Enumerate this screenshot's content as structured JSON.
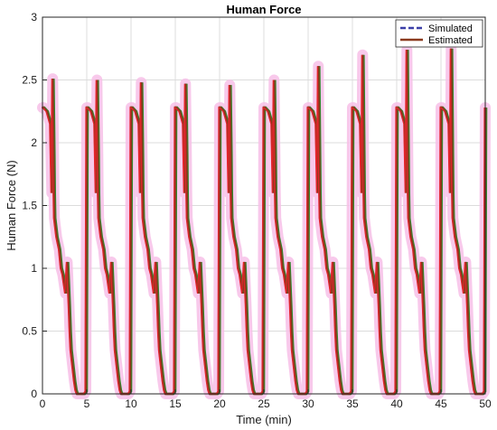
{
  "chart_data": {
    "type": "line",
    "title": "Human Force",
    "xlabel": "Time (min)",
    "ylabel": "Human Force (N)",
    "xlim": [
      0,
      50
    ],
    "ylim": [
      0,
      3
    ],
    "x_ticks": [
      0,
      5,
      10,
      15,
      20,
      25,
      30,
      35,
      40,
      45,
      50
    ],
    "y_ticks": [
      0,
      0.5,
      1,
      1.5,
      2,
      2.5,
      3
    ],
    "grid": true,
    "legend_position": "top-right",
    "cycle_period": 5,
    "cycle_starts": [
      0,
      5,
      10,
      15,
      20,
      25,
      30,
      35,
      40,
      45
    ],
    "cycle_peaks": [
      2.51,
      2.5,
      2.48,
      2.47,
      2.46,
      2.5,
      2.61,
      2.7,
      2.74,
      2.75
    ],
    "cycle_profile": {
      "t": [
        0,
        0.1,
        0.5,
        0.9,
        1.05,
        1.15,
        1.25,
        1.3,
        1.35,
        1.6,
        1.9,
        2.1,
        2.3,
        2.6,
        2.8,
        3.0,
        3.1,
        3.2,
        3.6,
        3.75,
        3.9,
        4.4,
        4.7,
        4.9,
        5.0
      ],
      "f": [
        2.28,
        2.28,
        2.25,
        2.15,
        1.6,
        2.52,
        1.9,
        1.6,
        1.4,
        1.25,
        1.15,
        1.0,
        0.95,
        0.8,
        1.05,
        0.7,
        0.5,
        0.35,
        0.1,
        0.03,
        0.0,
        0.0,
        0.0,
        0.02,
        2.28
      ]
    },
    "series": [
      {
        "name": "Simulated",
        "color": "#3b3fa8",
        "style": "dashed"
      },
      {
        "name": "Estimated",
        "color": "#8b3a1e",
        "style": "solid"
      }
    ],
    "band_color": "#f7bfe7",
    "overlay_color": "#e3242b",
    "accent_color": "#2e8b2e"
  }
}
